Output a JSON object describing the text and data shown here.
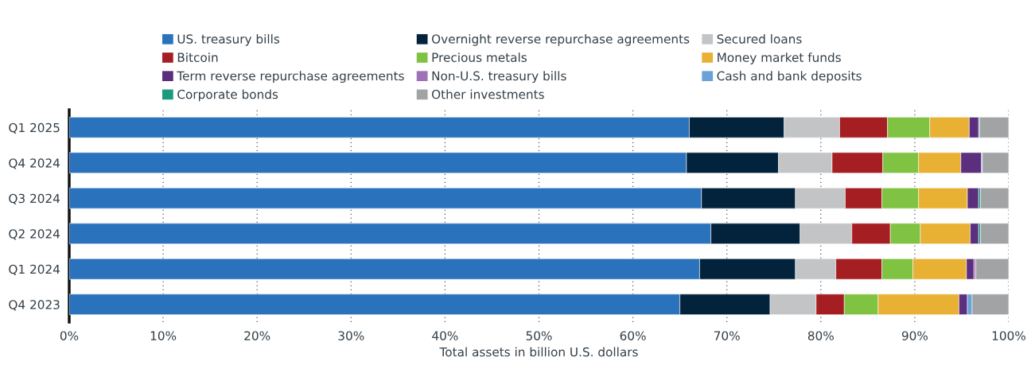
{
  "chart_data": {
    "type": "bar",
    "orientation": "horizontal",
    "stacked": true,
    "categories": [
      "Q1 2025",
      "Q4 2024",
      "Q3 2024",
      "Q2 2024",
      "Q1 2024",
      "Q4 2023"
    ],
    "xlabel": "Total assets in billion U.S. dollars",
    "xlim": [
      0,
      100
    ],
    "xticks": [
      {
        "value": 0,
        "label": "0%"
      },
      {
        "value": 10,
        "label": "10%"
      },
      {
        "value": 20,
        "label": "20%"
      },
      {
        "value": 30,
        "label": "30%"
      },
      {
        "value": 40,
        "label": "40%"
      },
      {
        "value": 50,
        "label": "50%"
      },
      {
        "value": 60,
        "label": "60%"
      },
      {
        "value": 70,
        "label": "70%"
      },
      {
        "value": 80,
        "label": "80%"
      },
      {
        "value": 90,
        "label": "90%"
      },
      {
        "value": 100,
        "label": "100%"
      }
    ],
    "grid": "x",
    "legend": "top",
    "series": [
      {
        "name": "US. treasury bills",
        "color": "#2a72bb",
        "values": [
          66.0,
          65.7,
          67.3,
          68.3,
          67.1,
          65.0
        ]
      },
      {
        "name": "Overnight reverse repurchase agreements",
        "color": "#03233c",
        "values": [
          10.1,
          9.8,
          10.0,
          9.5,
          10.2,
          9.6
        ]
      },
      {
        "name": "Secured loans",
        "color": "#c3c4c6",
        "values": [
          5.9,
          5.7,
          5.3,
          5.5,
          4.3,
          4.9
        ]
      },
      {
        "name": "Bitcoin",
        "color": "#a51e22",
        "values": [
          5.1,
          5.4,
          3.9,
          4.1,
          4.9,
          3.0
        ]
      },
      {
        "name": "Precious metals",
        "color": "#80c242",
        "values": [
          4.5,
          3.8,
          3.9,
          3.2,
          3.3,
          3.6
        ]
      },
      {
        "name": "Money market funds",
        "color": "#e9b133",
        "values": [
          4.2,
          4.5,
          5.2,
          5.3,
          5.7,
          8.6
        ]
      },
      {
        "name": "Term reverse repurchase agreements",
        "color": "#5b2e7e",
        "values": [
          1.0,
          2.2,
          1.2,
          0.9,
          0.8,
          0.9
        ]
      },
      {
        "name": "Non-U.S. treasury bills",
        "color": "#9f72b7",
        "values": [
          null,
          null,
          null,
          null,
          0.2,
          null
        ]
      },
      {
        "name": "Cash and bank deposits",
        "color": "#6aa2d8",
        "values": [
          null,
          0.1,
          null,
          null,
          null,
          0.5
        ]
      },
      {
        "name": "Corporate bonds",
        "color": "#1b9a7d",
        "values": [
          0.1,
          null,
          0.2,
          0.2,
          null,
          null
        ]
      },
      {
        "name": "Other investments",
        "color": "#a2a3a5",
        "values": [
          3.1,
          2.8,
          3.0,
          3.0,
          3.5,
          3.9
        ]
      }
    ]
  }
}
